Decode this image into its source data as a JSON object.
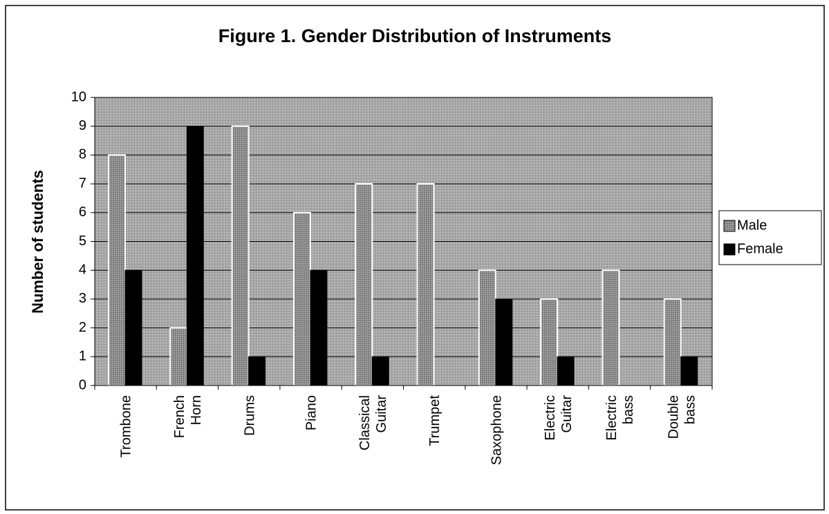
{
  "chart_data": {
    "type": "bar",
    "title": "Figure 1. Gender Distribution of Instruments",
    "y_label": "Number of students",
    "categories": [
      "Trombone",
      "French Horn",
      "Drums",
      "Piano",
      "Classical Guitar",
      "Trumpet",
      "Saxophone",
      "Electric Guitar",
      "Electric bass",
      "Double bass"
    ],
    "series": [
      {
        "name": "Male",
        "color": "#8c8c8c",
        "values": [
          8,
          2,
          9,
          6,
          7,
          7,
          4,
          3,
          4,
          3
        ]
      },
      {
        "name": "Female",
        "color": "#000000",
        "values": [
          4,
          9,
          1,
          4,
          1,
          0,
          3,
          1,
          0,
          1
        ]
      }
    ],
    "ylim": [
      0,
      10
    ],
    "yticks": [
      0,
      1,
      2,
      3,
      4,
      5,
      6,
      7,
      8,
      9,
      10
    ],
    "grid": true,
    "legend": "right"
  }
}
